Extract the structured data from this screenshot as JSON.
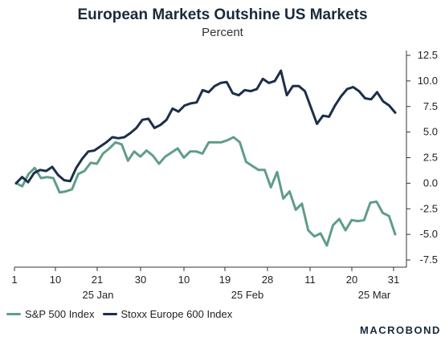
{
  "chart_data": {
    "type": "line",
    "title": "European Markets Outshine US Markets",
    "subtitle": "Percent",
    "ylabel": "",
    "xlabel": "",
    "ylim": [
      -7.5,
      12.5
    ],
    "y_ticks": [
      -7.5,
      -5.0,
      -2.5,
      0.0,
      2.5,
      5.0,
      7.5,
      10.0,
      12.5
    ],
    "y_tick_labels": [
      "-7.5",
      "-5.0",
      "-2.5",
      "0.0",
      "2.5",
      "5.0",
      "7.5",
      "10.0",
      "12.5"
    ],
    "x_ticks": [
      "1",
      "10",
      "21",
      "30",
      "10",
      "19",
      "28",
      "11",
      "20",
      "31"
    ],
    "month_labels": [
      "25 Jan",
      "25 Feb",
      "25 Mar"
    ],
    "grid": false,
    "legend_position": "bottom-left",
    "series": [
      {
        "name": "S&P 500 Index",
        "color": "#5f9e86",
        "values": [
          0.0,
          -0.3,
          0.9,
          1.5,
          0.5,
          0.6,
          0.5,
          -0.9,
          -0.8,
          -0.6,
          0.9,
          1.2,
          2.0,
          1.9,
          2.9,
          3.4,
          4.0,
          3.8,
          2.2,
          3.1,
          2.6,
          3.2,
          2.7,
          1.9,
          2.6,
          3.0,
          3.4,
          2.5,
          3.1,
          3.1,
          2.9,
          4.0,
          4.0,
          4.0,
          4.2,
          4.5,
          4.0,
          2.1,
          1.7,
          1.3,
          1.3,
          -0.4,
          1.1,
          -1.5,
          -0.8,
          -2.6,
          -2.0,
          -4.6,
          -5.2,
          -4.9,
          -6.1,
          -4.1,
          -3.5,
          -4.6,
          -3.6,
          -3.7,
          -3.6,
          -1.9,
          -1.8,
          -2.9,
          -3.2,
          -5.0
        ]
      },
      {
        "name": "Stoxx Europe 600 Index",
        "color": "#1c2f4a",
        "values": [
          0.0,
          0.6,
          0.1,
          1.0,
          1.3,
          1.2,
          1.6,
          0.8,
          0.3,
          0.2,
          1.5,
          2.4,
          3.1,
          3.2,
          3.6,
          4.0,
          4.5,
          4.4,
          4.5,
          4.9,
          5.4,
          6.2,
          6.3,
          5.4,
          5.7,
          6.2,
          7.3,
          7.0,
          7.6,
          7.8,
          7.9,
          9.1,
          8.9,
          9.5,
          9.8,
          9.9,
          8.8,
          8.6,
          9.1,
          9.0,
          9.2,
          10.2,
          9.8,
          10.0,
          11.0,
          8.6,
          9.5,
          9.5,
          9.0,
          7.4,
          5.8,
          6.6,
          6.5,
          7.6,
          8.5,
          9.2,
          9.4,
          9.0,
          8.3,
          8.2,
          8.9,
          8.0,
          7.6,
          6.9
        ]
      }
    ]
  },
  "legend": {
    "sp500_label": "S&P 500 Index",
    "stoxx_label": "Stoxx Europe 600 Index"
  },
  "brand": "MACROBOND"
}
